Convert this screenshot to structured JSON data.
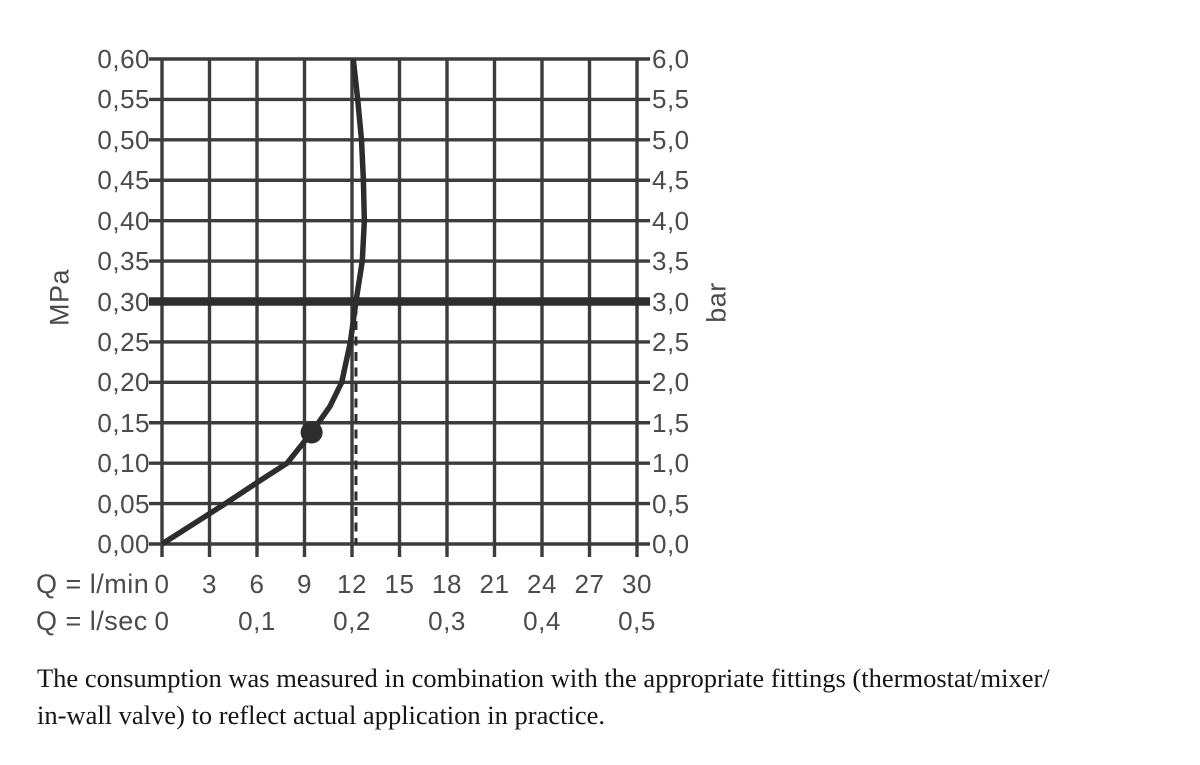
{
  "chart_data": {
    "type": "line",
    "title": "",
    "grid": true,
    "x_axis": {
      "range": [
        0,
        30
      ],
      "row_lmin": {
        "label": "Q = l/min",
        "tick_values": [
          0,
          3,
          6,
          9,
          12,
          15,
          18,
          21,
          24,
          27,
          30
        ],
        "tick_labels": [
          "0",
          "3",
          "6",
          "9",
          "12",
          "15",
          "18",
          "21",
          "24",
          "27",
          "30"
        ]
      },
      "row_lsec": {
        "label": "Q = l/sec",
        "tick_values": [
          0,
          6,
          12,
          18,
          24,
          30
        ],
        "tick_labels": [
          "0",
          "0,1",
          "0,2",
          "0,3",
          "0,4",
          "0,5"
        ]
      }
    },
    "y_axis_left": {
      "label": "MPa",
      "range": [
        0,
        0.6
      ],
      "tick_values": [
        0.6,
        0.55,
        0.5,
        0.45,
        0.4,
        0.35,
        0.3,
        0.25,
        0.2,
        0.15,
        0.1,
        0.05,
        0.0
      ],
      "tick_labels": [
        "0,60",
        "0,55",
        "0,50",
        "0,45",
        "0,40",
        "0,35",
        "0,30",
        "0,25",
        "0,20",
        "0,15",
        "0,10",
        "0,05",
        "0,00"
      ]
    },
    "y_axis_right": {
      "label": "bar",
      "range": [
        0,
        6
      ],
      "tick_labels": [
        "6,0",
        "5,5",
        "5,0",
        "4,5",
        "4,0",
        "3,5",
        "3,0",
        "2,5",
        "2,0",
        "1,5",
        "1,0",
        "0,5",
        "0,0"
      ]
    },
    "reference_line": {
      "mpa": 0.3,
      "bar": 3.0
    },
    "dashed_guide": {
      "x_lmin": 12.25,
      "from_mpa": 0.3,
      "to_mpa": 0.0
    },
    "marker_point": {
      "x_lmin": 9.45,
      "y_mpa": 0.138
    },
    "series": [
      {
        "name": "flow-pressure-curve",
        "points_lmin_mpa": [
          [
            0,
            0.0
          ],
          [
            2.0,
            0.025
          ],
          [
            4.0,
            0.05
          ],
          [
            6.0,
            0.076
          ],
          [
            7.9,
            0.1
          ],
          [
            9.45,
            0.138
          ],
          [
            10.6,
            0.17
          ],
          [
            11.35,
            0.2
          ],
          [
            11.9,
            0.25
          ],
          [
            12.25,
            0.3
          ],
          [
            12.65,
            0.35
          ],
          [
            12.78,
            0.4
          ],
          [
            12.72,
            0.45
          ],
          [
            12.6,
            0.5
          ],
          [
            12.36,
            0.55
          ],
          [
            12.08,
            0.6
          ]
        ]
      }
    ]
  },
  "caption": {
    "lines": [
      "The consumption was measured in combination with the appropriate fittings (thermostat/mixer/",
      "in-wall valve) to reflect actual application in practice."
    ]
  },
  "colors": {
    "grid_ink": "#3c3c3c",
    "curve_ink": "#2d2d2d",
    "reference_ink": "#2e2e2e",
    "label_ink": "#4b4b4b",
    "caption_ink": "#151515",
    "background": "#ffffff"
  }
}
